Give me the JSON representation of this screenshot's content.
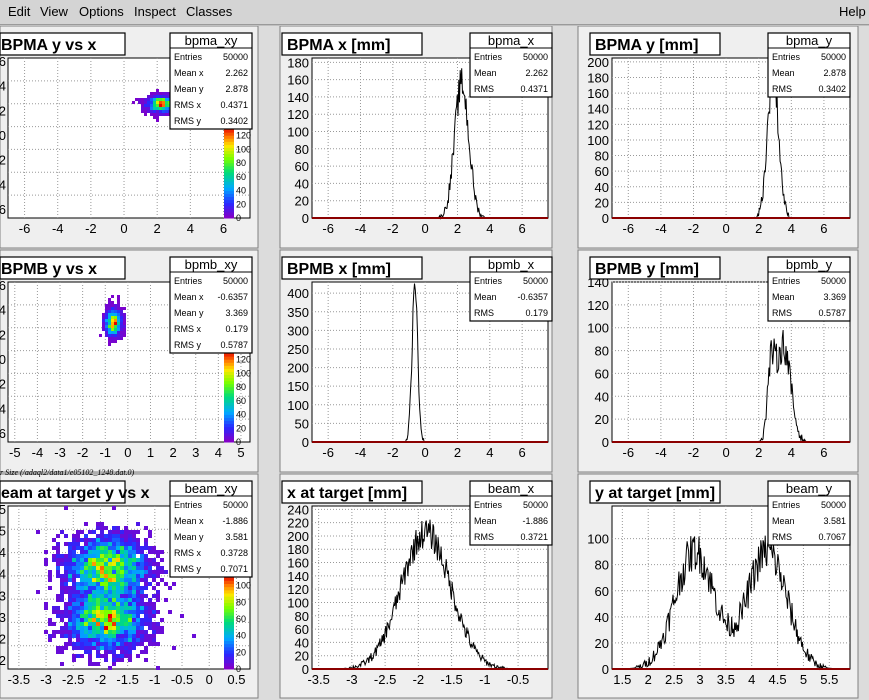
{
  "menu": {
    "edit": "Edit",
    "view": "View",
    "options": "Options",
    "inspect": "Inspect",
    "classes": "Classes",
    "help": "Help"
  },
  "file_note": "r Size (/adaql2/data1/e05102_1248.dat.0)",
  "colors": {
    "hist_line": "#000000",
    "axis": "#8b0000",
    "pad_bg": "#ffffff",
    "frame": "#f0f0f0"
  },
  "chart_data": [
    {
      "id": "bpma_xy",
      "type": "heatmap",
      "title": "BPMA y vs x",
      "stats_name": "bpma_xy",
      "stats": [
        [
          "Entries",
          "50000"
        ],
        [
          "Mean x",
          "2.262"
        ],
        [
          "Mean y",
          "2.878"
        ],
        [
          "RMS x",
          "0.4371"
        ],
        [
          "RMS y",
          "0.3402"
        ]
      ],
      "x_ticks": [
        "-6",
        "-4",
        "-2",
        "0",
        "2",
        "4",
        "6"
      ],
      "y_ticks": [
        "6",
        "4",
        "2",
        "0",
        "2",
        "4",
        "6"
      ],
      "z_ticks": [
        "0",
        "20",
        "40",
        "60",
        "80",
        "100",
        "120"
      ],
      "xlim": [
        -7,
        7.6
      ],
      "blobs": [
        {
          "mx": 2.262,
          "my": 2.878,
          "sx": 0.4371,
          "sy": 0.3402
        }
      ]
    },
    {
      "id": "bpma_x",
      "type": "line",
      "title": "BPMA x [mm]",
      "stats_name": "bpma_x",
      "stats": [
        [
          "Entries",
          "50000"
        ],
        [
          "Mean",
          "2.262"
        ],
        [
          "RMS",
          "0.4371"
        ]
      ],
      "x_ticks": [
        "-6",
        "-4",
        "-2",
        "0",
        "2",
        "4",
        "6"
      ],
      "xlim": [
        -7,
        7.6
      ],
      "ylim": [
        0,
        185
      ],
      "y_ticks": [
        "0",
        "20",
        "40",
        "60",
        "80",
        "100",
        "120",
        "140",
        "160",
        "180"
      ],
      "shape": [
        {
          "mean": 2.262,
          "sigma": 0.4371,
          "amp": 155
        }
      ]
    },
    {
      "id": "bpma_y",
      "type": "line",
      "title": "BPMA y [mm]",
      "stats_name": "bpma_y",
      "stats": [
        [
          "Entries",
          "50000"
        ],
        [
          "Mean",
          "2.878"
        ],
        [
          "RMS",
          "0.3402"
        ]
      ],
      "x_ticks": [
        "-6",
        "-4",
        "-2",
        "0",
        "2",
        "4",
        "6"
      ],
      "xlim": [
        -7,
        7.6
      ],
      "ylim": [
        0,
        205
      ],
      "y_ticks": [
        "0",
        "20",
        "40",
        "60",
        "80",
        "100",
        "120",
        "140",
        "160",
        "180",
        "200"
      ],
      "shape": [
        {
          "mean": 2.878,
          "sigma": 0.3402,
          "amp": 185
        }
      ]
    },
    {
      "id": "bpmb_xy",
      "type": "heatmap",
      "title": "BPMB y vs x",
      "stats_name": "bpmb_xy",
      "stats": [
        [
          "Entries",
          "50000"
        ],
        [
          "Mean x",
          "-0.6357"
        ],
        [
          "Mean y",
          "3.369"
        ],
        [
          "RMS x",
          "0.179"
        ],
        [
          "RMS y",
          "0.5787"
        ]
      ],
      "x_ticks": [
        "-5",
        "-4",
        "-3",
        "-2",
        "-1",
        "0",
        "1",
        "2",
        "3",
        "4",
        "5"
      ],
      "y_ticks": [
        "6",
        "4",
        "2",
        "0",
        "2",
        "4",
        "6"
      ],
      "z_ticks": [
        "0",
        "20",
        "40",
        "60",
        "80",
        "100",
        "120"
      ],
      "xlim": [
        -5.3,
        5.4
      ],
      "blobs": [
        {
          "mx": -0.6357,
          "my": 3.369,
          "sx": 0.179,
          "sy": 0.5787
        }
      ]
    },
    {
      "id": "bpmb_x",
      "type": "line",
      "title": "BPMB x [mm]",
      "stats_name": "bpmb_x",
      "stats": [
        [
          "Entries",
          "50000"
        ],
        [
          "Mean",
          "-0.6357"
        ],
        [
          "RMS",
          "0.179"
        ]
      ],
      "x_ticks": [
        "-6",
        "-4",
        "-2",
        "0",
        "2",
        "4",
        "6"
      ],
      "xlim": [
        -7,
        7.6
      ],
      "ylim": [
        0,
        430
      ],
      "y_ticks": [
        "0",
        "50",
        "100",
        "150",
        "200",
        "250",
        "300",
        "350",
        "400"
      ],
      "shape": [
        {
          "mean": -0.6357,
          "sigma": 0.179,
          "amp": 410
        }
      ]
    },
    {
      "id": "bpmb_y",
      "type": "line",
      "title": "BPMB y [mm]",
      "stats_name": "bpmb_y",
      "stats": [
        [
          "Entries",
          "50000"
        ],
        [
          "Mean",
          "3.369"
        ],
        [
          "RMS",
          "0.5787"
        ]
      ],
      "x_ticks": [
        "-6",
        "-4",
        "-2",
        "0",
        "2",
        "4",
        "6"
      ],
      "xlim": [
        -7,
        7.6
      ],
      "ylim": [
        0,
        140
      ],
      "y_ticks": [
        "0",
        "20",
        "40",
        "60",
        "80",
        "100",
        "120",
        "140"
      ],
      "shape": [
        {
          "mean": 2.75,
          "sigma": 0.22,
          "amp": 55
        },
        {
          "mean": 3.5,
          "sigma": 0.45,
          "amp": 85
        }
      ]
    },
    {
      "id": "beam_xy",
      "type": "heatmap",
      "title": "eam at target y vs x",
      "stats_name": "beam_xy",
      "stats": [
        [
          "Entries",
          "50000"
        ],
        [
          "Mean x",
          "-1.886"
        ],
        [
          "Mean y",
          "3.581"
        ],
        [
          "RMS x",
          "0.3728"
        ],
        [
          "RMS y",
          "0.7071"
        ]
      ],
      "x_ticks": [
        "-3.5",
        "-3",
        "-2.5",
        "-2",
        "-1.5",
        "-1",
        "-0.5",
        "0",
        "0.5"
      ],
      "y_ticks": [
        "5",
        "5",
        "4",
        "4",
        "3",
        "3",
        "2",
        "2"
      ],
      "z_ticks": [
        "0",
        "20",
        "40",
        "60",
        "80",
        "100"
      ],
      "xlim": [
        -3.7,
        0.75
      ],
      "blobs": [
        {
          "mx": -1.886,
          "my": 4.3,
          "sx": 0.38,
          "sy": 0.42
        },
        {
          "mx": -1.886,
          "my": 2.9,
          "sx": 0.38,
          "sy": 0.42
        }
      ]
    },
    {
      "id": "beam_x",
      "type": "line",
      "title": "x at target [mm]",
      "stats_name": "beam_x",
      "stats": [
        [
          "Entries",
          "50000"
        ],
        [
          "Mean",
          "-1.886"
        ],
        [
          "RMS",
          "0.3721"
        ]
      ],
      "x_ticks": [
        "-3.5",
        "-3",
        "-2.5",
        "-2",
        "-1.5",
        "-1",
        "-0.5"
      ],
      "xlim": [
        -3.6,
        -0.05
      ],
      "ylim": [
        0,
        245
      ],
      "y_ticks": [
        "0",
        "20",
        "40",
        "60",
        "80",
        "100",
        "120",
        "140",
        "160",
        "180",
        "200",
        "220",
        "240"
      ],
      "shape": [
        {
          "mean": -1.886,
          "sigma": 0.3721,
          "amp": 205
        }
      ]
    },
    {
      "id": "beam_y",
      "type": "line",
      "title": "y at target [mm]",
      "stats_name": "beam_y",
      "stats": [
        [
          "Entries",
          "50000"
        ],
        [
          "Mean",
          "3.581"
        ],
        [
          "RMS",
          "0.7067"
        ]
      ],
      "x_ticks": [
        "1.5",
        "2",
        "2.5",
        "3",
        "3.5",
        "4",
        "4.5",
        "5",
        "5.5"
      ],
      "xlim": [
        1.3,
        5.9
      ],
      "ylim": [
        0,
        125
      ],
      "y_ticks": [
        "0",
        "20",
        "40",
        "60",
        "80",
        "100"
      ],
      "shape": [
        {
          "mean": 2.9,
          "sigma": 0.38,
          "amp": 90
        },
        {
          "mean": 4.3,
          "sigma": 0.38,
          "amp": 90
        }
      ]
    }
  ]
}
